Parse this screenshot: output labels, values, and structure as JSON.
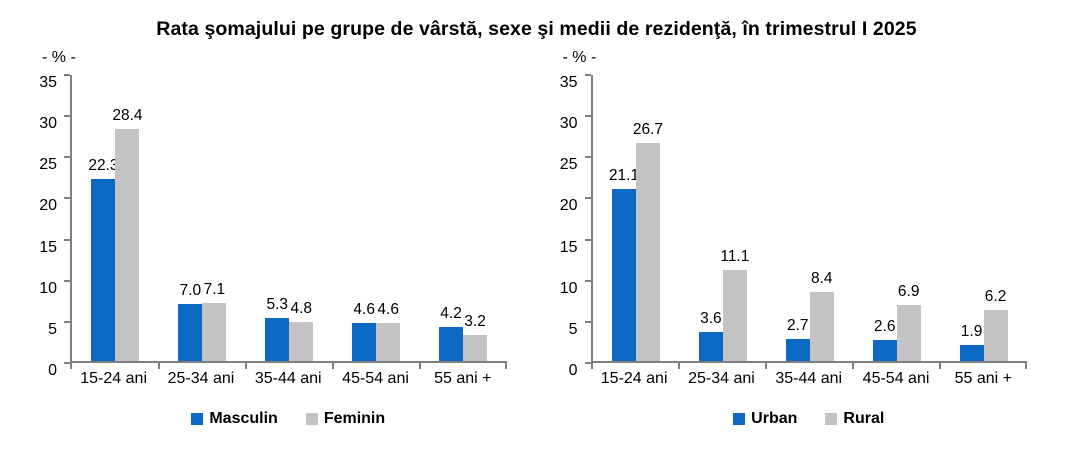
{
  "title": "Rata şomajului pe grupe de vârstă, sexe şi medii de rezidenţă, în trimestrul I 2025",
  "colors": {
    "series_blue": "#0b69c4",
    "series_gray": "#c3c3c3",
    "axis": "#7f7f7f",
    "text": "#000000",
    "background": "#ffffff"
  },
  "chart_data": [
    {
      "type": "bar",
      "unit_label": "- % -",
      "categories": [
        "15-24 ani",
        "25-34 ani",
        "35-44 ani",
        "45-54 ani",
        "55 ani +"
      ],
      "series": [
        {
          "name": "Masculin",
          "color": "#0b69c4",
          "values": [
            22.3,
            7.0,
            5.3,
            4.6,
            4.2
          ]
        },
        {
          "name": "Feminin",
          "color": "#c3c3c3",
          "values": [
            28.4,
            7.1,
            4.8,
            4.6,
            3.2
          ]
        }
      ],
      "ylim": [
        0,
        35
      ],
      "ytick_step": 5,
      "value_decimals": 1,
      "grid": false,
      "legend_position": "bottom"
    },
    {
      "type": "bar",
      "unit_label": "- % -",
      "categories": [
        "15-24 ani",
        "25-34 ani",
        "35-44 ani",
        "45-54 ani",
        "55 ani +"
      ],
      "series": [
        {
          "name": "Urban",
          "color": "#0b69c4",
          "values": [
            21.1,
            3.6,
            2.7,
            2.6,
            1.9
          ]
        },
        {
          "name": "Rural",
          "color": "#c3c3c3",
          "values": [
            26.7,
            11.1,
            8.4,
            6.9,
            6.2
          ]
        }
      ],
      "ylim": [
        0,
        35
      ],
      "ytick_step": 5,
      "value_decimals": 1,
      "grid": false,
      "legend_position": "bottom"
    }
  ]
}
